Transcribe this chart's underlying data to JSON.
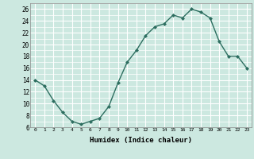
{
  "x": [
    0,
    1,
    2,
    3,
    4,
    5,
    6,
    7,
    8,
    9,
    10,
    11,
    12,
    13,
    14,
    15,
    16,
    17,
    18,
    19,
    20,
    21,
    22,
    23
  ],
  "y": [
    14,
    13,
    10.5,
    8.5,
    7,
    6.5,
    7,
    7.5,
    9.5,
    13.5,
    17,
    19,
    21.5,
    23,
    23.5,
    25,
    24.5,
    26,
    25.5,
    24.5,
    20.5,
    18,
    18,
    16
  ],
  "title": "",
  "xlabel": "Humidex (Indice chaleur)",
  "ylabel": "",
  "xlim": [
    -0.5,
    23.5
  ],
  "ylim": [
    6,
    27
  ],
  "yticks": [
    6,
    8,
    10,
    12,
    14,
    16,
    18,
    20,
    22,
    24,
    26
  ],
  "xticks": [
    0,
    1,
    2,
    3,
    4,
    5,
    6,
    7,
    8,
    9,
    10,
    11,
    12,
    13,
    14,
    15,
    16,
    17,
    18,
    19,
    20,
    21,
    22,
    23
  ],
  "line_color": "#2d6e60",
  "marker_color": "#2d6e60",
  "bg_color": "#cce8e0",
  "grid_color": "#ffffff",
  "grid_minor_color": "#ddf0eb",
  "fig_bg": "#cce8e0"
}
